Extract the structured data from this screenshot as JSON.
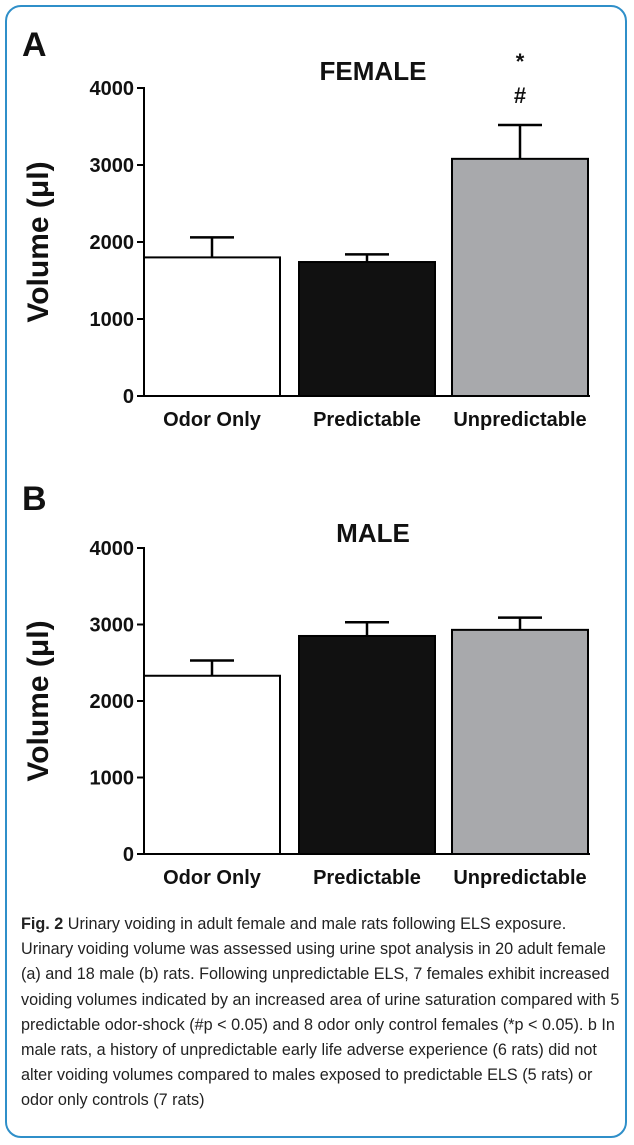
{
  "figure": {
    "caption_label": "Fig. 2",
    "caption_text": " Urinary voiding in adult female and male rats following ELS exposure. Urinary voiding volume was assessed using urine spot analysis in 20 adult female (a) and 18 male (b) rats. Following unpredictable ELS, 7 females exhibit increased voiding volumes indicated by an increased area of urine saturation compared with 5 predictable odor-shock (#p < 0.05) and 8 odor only control females (*p < 0.05). b In male rats, a history of unpredictable early life adverse experience (6 rats) did not alter voiding volumes compared to males exposed to predictable ELS (5 rats) or odor only controls (7 rats)"
  },
  "chart_data": [
    {
      "type": "bar",
      "panel_label": "A",
      "title": "FEMALE",
      "ylabel": "Volume (μl)",
      "xlabel": "",
      "categories": [
        "Odor Only",
        "Predictable",
        "Unpredictable"
      ],
      "values": [
        1800,
        1740,
        3080
      ],
      "errors": [
        260,
        100,
        440
      ],
      "colors": [
        "#ffffff",
        "#111111",
        "#a8a9ac"
      ],
      "ylim": [
        0,
        4000
      ],
      "yticks": [
        0,
        1000,
        2000,
        3000,
        4000
      ],
      "annotations": [
        {
          "category": "Unpredictable",
          "symbols": [
            "*",
            "#"
          ]
        }
      ],
      "grid": false,
      "legend": "none"
    },
    {
      "type": "bar",
      "panel_label": "B",
      "title": "MALE",
      "ylabel": "Volume (μl)",
      "xlabel": "",
      "categories": [
        "Odor Only",
        "Predictable",
        "Unpredictable"
      ],
      "values": [
        2330,
        2850,
        2930
      ],
      "errors": [
        200,
        180,
        160
      ],
      "colors": [
        "#ffffff",
        "#111111",
        "#a8a9ac"
      ],
      "ylim": [
        0,
        4000
      ],
      "yticks": [
        0,
        1000,
        2000,
        3000,
        4000
      ],
      "annotations": [],
      "grid": false,
      "legend": "none"
    }
  ]
}
